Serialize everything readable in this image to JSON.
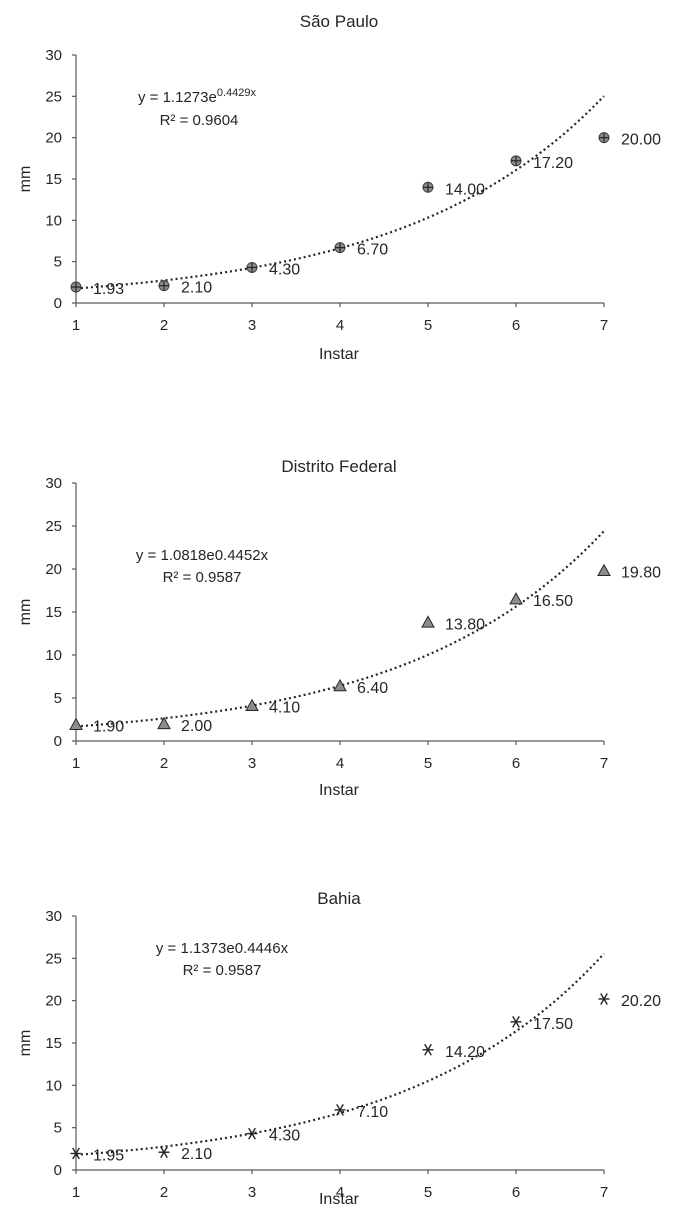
{
  "chart_data": [
    {
      "type": "scatter",
      "title": "São Paulo",
      "xlabel": "Instar",
      "ylabel": "mm",
      "xlim": [
        1,
        7
      ],
      "ylim": [
        0,
        30
      ],
      "xticks": [
        "1",
        "2",
        "3",
        "4",
        "5",
        "6",
        "7"
      ],
      "yticks": [
        "0",
        "5",
        "10",
        "15",
        "20",
        "25",
        "30"
      ],
      "marker": "circle-plus",
      "marker_color": "#8c8c8c",
      "x": [
        1,
        2,
        3,
        4,
        5,
        6,
        7
      ],
      "y": [
        1.93,
        2.1,
        4.3,
        6.7,
        14.0,
        17.2,
        20.0
      ],
      "data_labels": [
        "1.93",
        "2.10",
        "4.30",
        "6.70",
        "14.00",
        "17.20",
        "20.00"
      ],
      "trendline": {
        "type": "exponential",
        "a": 1.1273,
        "b": 0.4429,
        "equation_prefix": "y = 1.1273e",
        "equation_exponent": "0.4429x",
        "equation_suffix": "",
        "r2_label": "R² = 0.9604",
        "superscript": true
      }
    },
    {
      "type": "scatter",
      "title": "Distrito Federal",
      "xlabel": "Instar",
      "ylabel": "mm",
      "xlim": [
        1,
        7
      ],
      "ylim": [
        0,
        30
      ],
      "xticks": [
        "1",
        "2",
        "3",
        "4",
        "5",
        "6",
        "7"
      ],
      "yticks": [
        "0",
        "5",
        "10",
        "15",
        "20",
        "25",
        "30"
      ],
      "marker": "triangle",
      "marker_color": "#8c8c8c",
      "x": [
        1,
        2,
        3,
        4,
        5,
        6,
        7
      ],
      "y": [
        1.9,
        2.0,
        4.1,
        6.4,
        13.8,
        16.5,
        19.8
      ],
      "data_labels": [
        "1.90",
        "2.00",
        "4.10",
        "6.40",
        "13.80",
        "16.50",
        "19.80"
      ],
      "trendline": {
        "type": "exponential",
        "a": 1.0818,
        "b": 0.4452,
        "equation_prefix": "y = 1.0818e0.4452x",
        "equation_exponent": "",
        "equation_suffix": "",
        "r2_label": "R² = 0.9587",
        "superscript": false
      }
    },
    {
      "type": "scatter",
      "title": "Bahia",
      "xlabel": "Instar",
      "ylabel": "mm",
      "xlim": [
        1,
        7
      ],
      "ylim": [
        0,
        30
      ],
      "xticks": [
        "1",
        "2",
        "3",
        "4",
        "5",
        "6",
        "7"
      ],
      "yticks": [
        "0",
        "5",
        "10",
        "15",
        "20",
        "25",
        "30"
      ],
      "marker": "asterisk",
      "marker_color": "#262626",
      "x": [
        1,
        2,
        3,
        4,
        5,
        6,
        7
      ],
      "y": [
        1.95,
        2.1,
        4.3,
        7.1,
        14.2,
        17.5,
        20.2
      ],
      "data_labels": [
        "1.95",
        "2.10",
        "4.30",
        "7.10",
        "14.20",
        "17.50",
        "20.20"
      ],
      "trendline": {
        "type": "exponential",
        "a": 1.1373,
        "b": 0.4446,
        "equation_prefix": "y = 1.1373e0.4446x",
        "equation_exponent": "",
        "equation_suffix": "",
        "r2_label": "R² = 0.9587",
        "superscript": false
      }
    }
  ]
}
